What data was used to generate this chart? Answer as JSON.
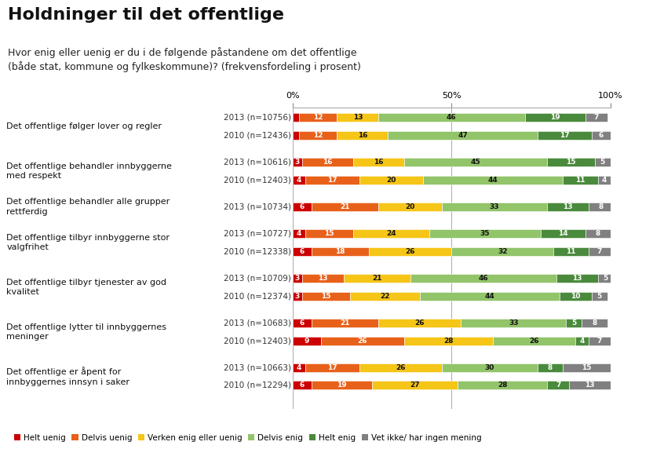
{
  "title": "Holdninger til det offentlige",
  "subtitle": "Hvor enig eller uenig er du i de følgende påstandene om det offentlige\n(både stat, kommune og fylkeskommune)? (frekvensfordeling i prosent)",
  "categories": [
    "Det offentlige følger lover og regler",
    "Det offentlige behandler innbyggerne\nmed respekt",
    "Det offentlige behandler alle grupper\nrettferdig",
    "Det offentlige tilbyr innbyggerne stor\nvalgfrihet",
    "Det offentlige tilbyr tjenester av god\nkvalitet",
    "Det offentlige lytter til innbyggernes\nmeninger",
    "Det offentlige er åpent for\ninnbyggernes innsyn i saker"
  ],
  "category_rows": [
    [
      {
        "label": "2013 (n=10756)",
        "values": [
          2,
          12,
          13,
          46,
          19,
          7
        ]
      },
      {
        "label": "2010 (n=12436)",
        "values": [
          2,
          12,
          16,
          47,
          17,
          6
        ]
      }
    ],
    [
      {
        "label": "2013 (n=10616)",
        "values": [
          3,
          16,
          16,
          45,
          15,
          5
        ]
      },
      {
        "label": "2010 (n=12403)",
        "values": [
          4,
          17,
          20,
          44,
          11,
          4
        ]
      }
    ],
    [
      {
        "label": "2013 (n=10734)",
        "values": [
          6,
          21,
          20,
          33,
          13,
          8
        ]
      }
    ],
    [
      {
        "label": "2013 (n=10727)",
        "values": [
          4,
          15,
          24,
          35,
          14,
          8
        ]
      },
      {
        "label": "2010 (n=12338)",
        "values": [
          6,
          18,
          26,
          32,
          11,
          7
        ]
      }
    ],
    [
      {
        "label": "2013 (n=10709)",
        "values": [
          3,
          13,
          21,
          46,
          13,
          5
        ]
      },
      {
        "label": "2010 (n=12374)",
        "values": [
          3,
          15,
          22,
          44,
          10,
          5
        ]
      }
    ],
    [
      {
        "label": "2013 (n=10683)",
        "values": [
          6,
          21,
          26,
          33,
          5,
          8
        ]
      },
      {
        "label": "2010 (n=12403)",
        "values": [
          9,
          26,
          28,
          26,
          4,
          7
        ]
      }
    ],
    [
      {
        "label": "2013 (n=10663)",
        "values": [
          4,
          17,
          26,
          30,
          8,
          15
        ]
      },
      {
        "label": "2010 (n=12294)",
        "values": [
          6,
          19,
          27,
          28,
          7,
          13
        ]
      }
    ]
  ],
  "segment_colors": [
    "#cc0000",
    "#e8611a",
    "#f5c518",
    "#92c46a",
    "#4a8a3c",
    "#808080"
  ],
  "legend_labels": [
    "Helt uenig",
    "Delvis uenig",
    "Verken enig eller uenig",
    "Delvis enig",
    "Helt enig",
    "Vet ikke/ har ingen mening"
  ],
  "background_color": "#ffffff",
  "title_fontsize": 16,
  "subtitle_fontsize": 9,
  "bar_label_fontsize": 6.5,
  "cat_label_fontsize": 8,
  "row_label_fontsize": 7.5,
  "legend_fontsize": 7.5
}
